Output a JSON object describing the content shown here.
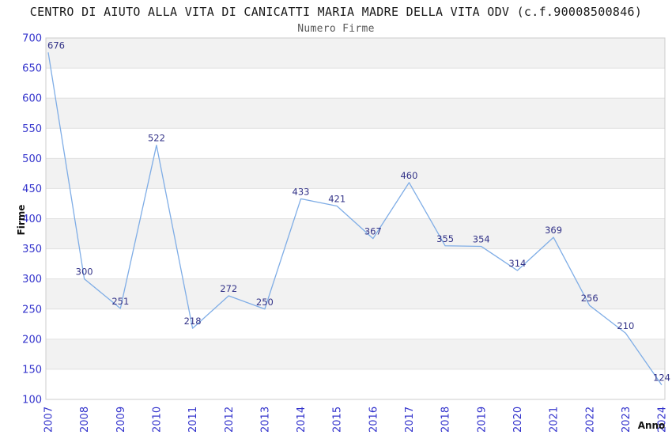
{
  "header": {
    "title": "CENTRO DI AIUTO ALLA VITA DI CANICATTI MARIA MADRE DELLA VITA ODV (c.f.90008500846)",
    "subtitle": "Numero Firme"
  },
  "chart_data": {
    "type": "line",
    "title": "CENTRO DI AIUTO ALLA VITA DI CANICATTI MARIA MADRE DELLA VITA ODV (c.f.90008500846)",
    "subtitle": "Numero Firme",
    "xlabel": "Anno",
    "ylabel": "Firme",
    "categories": [
      "2007",
      "2008",
      "2009",
      "2010",
      "2011",
      "2012",
      "2013",
      "2014",
      "2015",
      "2016",
      "2017",
      "2018",
      "2019",
      "2020",
      "2021",
      "2022",
      "2023",
      "2024"
    ],
    "series": [
      {
        "name": "Numero Firme",
        "values": [
          676,
          300,
          251,
          522,
          218,
          272,
          250,
          433,
          421,
          367,
          460,
          355,
          354,
          314,
          369,
          256,
          210,
          124
        ]
      }
    ],
    "ylim": [
      100,
      700
    ],
    "ytick_step": 50,
    "grid": true,
    "legend": "none",
    "band_alternating": true,
    "point_labels_visible": true,
    "colors": {
      "line": "#7fade6",
      "tick_label": "#3333cc",
      "point_label": "#333388",
      "band": "#f2f2f2",
      "gridline": "#e0e0e0",
      "plot_border": "#cccccc",
      "title": "#1a1a1a",
      "subtitle": "#595959",
      "axis_title": "#111111",
      "background": "#ffffff"
    }
  }
}
